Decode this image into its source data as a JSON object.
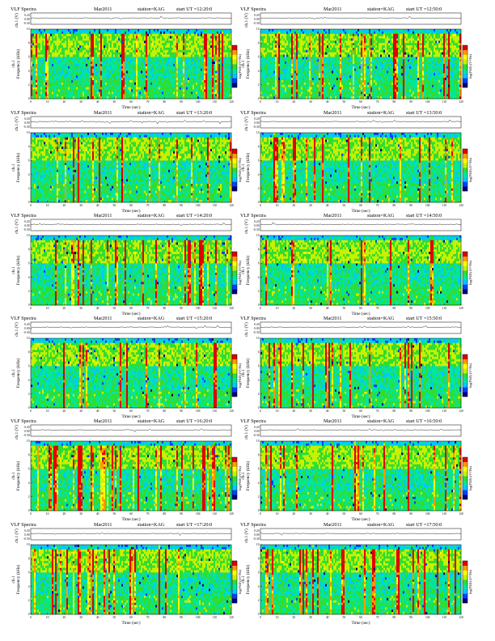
{
  "figure": {
    "panel_title": "VLF Spectra",
    "month": "Mar2011",
    "station": "station=KAG",
    "start_prefix": "start  UT  =",
    "amp_label": "ch.1 (V)",
    "spec_label": "Frequency  (kHz)",
    "spec_label_ch": "ch.1",
    "x_label": "Time  (sec)",
    "colorbar_label": "log(PSD) (V²/Hz)"
  },
  "chart_data": [
    {
      "type": "heatmap",
      "start_time": "12:20:0",
      "x_range": [
        0,
        120
      ],
      "y_range": [
        0,
        10
      ],
      "amp_ylim": [
        -0.3,
        0.3
      ],
      "colorscale": [
        "#00007a",
        "#0040ff",
        "#00c8ff",
        "#00e6a0",
        "#30dd30",
        "#c8f000",
        "#ffff00",
        "#ff9a00",
        "#e00000"
      ]
    },
    {
      "type": "heatmap",
      "start_time": "12:50:0",
      "x_range": [
        0,
        120
      ],
      "y_range": [
        0,
        10
      ],
      "amp_ylim": [
        -0.3,
        0.3
      ],
      "colorscale": [
        "#00007a",
        "#0040ff",
        "#00c8ff",
        "#00e6a0",
        "#30dd30",
        "#c8f000",
        "#ffff00",
        "#ff9a00",
        "#e00000"
      ]
    },
    {
      "type": "heatmap",
      "start_time": "13:20:0",
      "x_range": [
        0,
        120
      ],
      "y_range": [
        0,
        10
      ],
      "amp_ylim": [
        -0.3,
        0.3
      ],
      "colorscale": [
        "#00007a",
        "#0040ff",
        "#00c8ff",
        "#00e6a0",
        "#30dd30",
        "#c8f000",
        "#ffff00",
        "#ff9a00",
        "#e00000"
      ]
    },
    {
      "type": "heatmap",
      "start_time": "13:50:0",
      "x_range": [
        0,
        120
      ],
      "y_range": [
        0,
        10
      ],
      "amp_ylim": [
        -0.3,
        0.3
      ],
      "colorscale": [
        "#00007a",
        "#0040ff",
        "#00c8ff",
        "#00e6a0",
        "#30dd30",
        "#c8f000",
        "#ffff00",
        "#ff9a00",
        "#e00000"
      ]
    },
    {
      "type": "heatmap",
      "start_time": "14:20:0",
      "x_range": [
        0,
        120
      ],
      "y_range": [
        0,
        10
      ],
      "amp_ylim": [
        -0.3,
        0.3
      ],
      "colorscale": [
        "#00007a",
        "#0040ff",
        "#00c8ff",
        "#00e6a0",
        "#30dd30",
        "#c8f000",
        "#ffff00",
        "#ff9a00",
        "#e00000"
      ]
    },
    {
      "type": "heatmap",
      "start_time": "14:50:0",
      "x_range": [
        0,
        120
      ],
      "y_range": [
        0,
        10
      ],
      "amp_ylim": [
        -0.3,
        0.3
      ],
      "colorscale": [
        "#00007a",
        "#0040ff",
        "#00c8ff",
        "#00e6a0",
        "#30dd30",
        "#c8f000",
        "#ffff00",
        "#ff9a00",
        "#e00000"
      ]
    },
    {
      "type": "heatmap",
      "start_time": "15:20:0",
      "x_range": [
        0,
        120
      ],
      "y_range": [
        0,
        10
      ],
      "amp_ylim": [
        -0.3,
        0.3
      ],
      "colorscale": [
        "#00007a",
        "#0040ff",
        "#00c8ff",
        "#00e6a0",
        "#30dd30",
        "#c8f000",
        "#ffff00",
        "#ff9a00",
        "#e00000"
      ]
    },
    {
      "type": "heatmap",
      "start_time": "15:50:0",
      "x_range": [
        0,
        120
      ],
      "y_range": [
        0,
        10
      ],
      "amp_ylim": [
        -0.3,
        0.3
      ],
      "colorscale": [
        "#00007a",
        "#0040ff",
        "#00c8ff",
        "#00e6a0",
        "#30dd30",
        "#c8f000",
        "#ffff00",
        "#ff9a00",
        "#e00000"
      ]
    },
    {
      "type": "heatmap",
      "start_time": "16:20:0",
      "x_range": [
        0,
        120
      ],
      "y_range": [
        0,
        10
      ],
      "amp_ylim": [
        -0.3,
        0.3
      ],
      "colorscale": [
        "#00007a",
        "#0040ff",
        "#00c8ff",
        "#00e6a0",
        "#30dd30",
        "#c8f000",
        "#ffff00",
        "#ff9a00",
        "#e00000"
      ]
    },
    {
      "type": "heatmap",
      "start_time": "16:50:0",
      "x_range": [
        0,
        120
      ],
      "y_range": [
        0,
        10
      ],
      "amp_ylim": [
        -0.3,
        0.3
      ],
      "colorscale": [
        "#00007a",
        "#0040ff",
        "#00c8ff",
        "#00e6a0",
        "#30dd30",
        "#c8f000",
        "#ffff00",
        "#ff9a00",
        "#e00000"
      ]
    },
    {
      "type": "heatmap",
      "start_time": "17:20:0",
      "x_range": [
        0,
        120
      ],
      "y_range": [
        0,
        10
      ],
      "amp_ylim": [
        -0.3,
        0.3
      ],
      "colorscale": [
        "#00007a",
        "#0040ff",
        "#00c8ff",
        "#00e6a0",
        "#30dd30",
        "#c8f000",
        "#ffff00",
        "#ff9a00",
        "#e00000"
      ]
    },
    {
      "type": "heatmap",
      "start_time": "17:50:0",
      "x_range": [
        0,
        120
      ],
      "y_range": [
        0,
        10
      ],
      "amp_ylim": [
        -0.3,
        0.3
      ],
      "colorscale": [
        "#00007a",
        "#0040ff",
        "#00c8ff",
        "#00e6a0",
        "#30dd30",
        "#c8f000",
        "#ffff00",
        "#ff9a00",
        "#e00000"
      ]
    }
  ]
}
